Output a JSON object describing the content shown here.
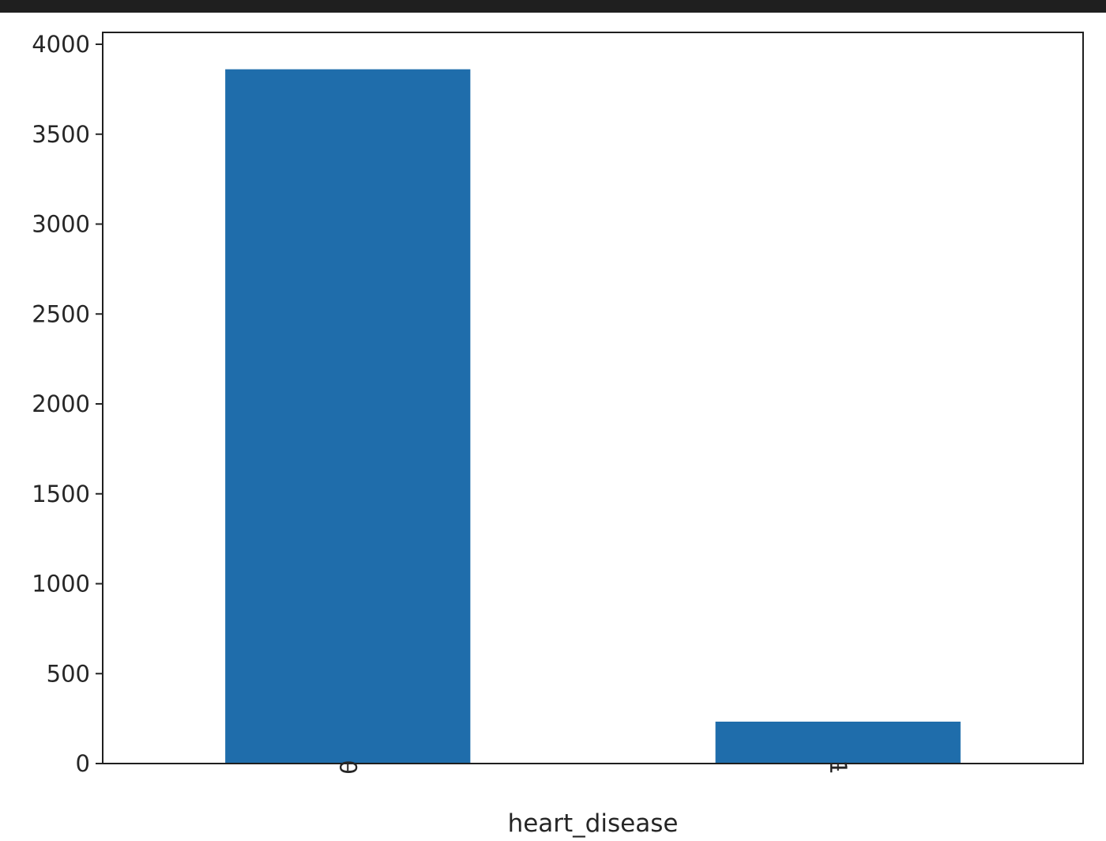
{
  "chart_data": {
    "type": "bar",
    "categories": [
      "0",
      "1"
    ],
    "values": [
      3861,
      233
    ],
    "title": "",
    "xlabel": "heart_disease",
    "ylabel": "",
    "ylim": [
      0,
      4066
    ],
    "yticks": [
      0,
      500,
      1000,
      1500,
      2000,
      2500,
      3000,
      3500,
      4000
    ],
    "xtick_rotation": "vertical",
    "grid": false,
    "bar_color": "#1f6dab",
    "background": "#ffffff",
    "frame_color": "#1f1f1f"
  }
}
